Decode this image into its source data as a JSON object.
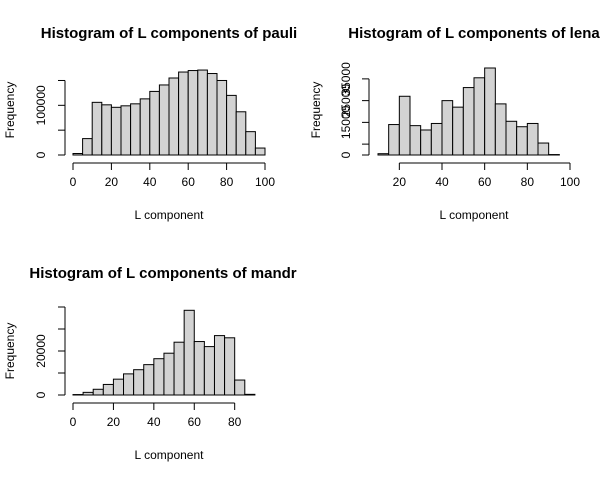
{
  "chart_data": [
    {
      "type": "bar",
      "title": "Histogram of L components of pauli",
      "xlabel": "L component",
      "ylabel": "Frequency",
      "xlim": [
        0,
        100
      ],
      "ylim": [
        0,
        155000
      ],
      "xticks": [
        0,
        20,
        40,
        60,
        80,
        100
      ],
      "yticks": [
        0,
        50000,
        100000,
        150000
      ],
      "ytick_labels": [
        "0",
        "",
        "100000",
        ""
      ],
      "bin_edges": [
        0,
        5,
        10,
        15,
        20,
        25,
        30,
        35,
        40,
        45,
        50,
        55,
        60,
        65,
        70,
        75,
        80,
        85,
        90,
        95,
        100
      ],
      "values": [
        3000,
        33000,
        106000,
        101000,
        96000,
        99000,
        103000,
        113000,
        128000,
        141000,
        155000,
        167000,
        170000,
        171000,
        164000,
        150000,
        120000,
        87000,
        47000,
        14000
      ]
    },
    {
      "type": "bar",
      "title": "Histogram of L components of lena",
      "xlabel": "L component",
      "ylabel": "Frequency",
      "xlim": [
        10,
        100
      ],
      "ylim": [
        0,
        40000
      ],
      "xticks": [
        20,
        40,
        60,
        80,
        100
      ],
      "yticks": [
        0,
        5000,
        15000,
        25000,
        35000
      ],
      "ytick_labels": [
        "0",
        "",
        "15000",
        "25000",
        "35000"
      ],
      "bin_edges": [
        10,
        15,
        20,
        25,
        30,
        35,
        40,
        45,
        50,
        55,
        60,
        65,
        70,
        75,
        80,
        85,
        90,
        95
      ],
      "values": [
        600,
        14000,
        27000,
        13500,
        11500,
        14500,
        25000,
        22000,
        31000,
        35500,
        40000,
        23500,
        15500,
        13000,
        14500,
        5500,
        200
      ]
    },
    {
      "type": "bar",
      "title": "Histogram of L components of mandr",
      "xlabel": "L component",
      "ylabel": "Frequency",
      "xlim": [
        0,
        95
      ],
      "ylim": [
        0,
        40000
      ],
      "xticks": [
        0,
        20,
        40,
        60,
        80
      ],
      "yticks": [
        0,
        10000,
        20000,
        30000,
        40000
      ],
      "ytick_labels": [
        "0",
        "",
        "20000",
        "",
        ""
      ],
      "bin_edges": [
        0,
        5,
        10,
        15,
        20,
        25,
        30,
        35,
        40,
        45,
        50,
        55,
        60,
        65,
        70,
        75,
        80,
        85,
        90
      ],
      "values": [
        200,
        1200,
        2600,
        4800,
        7200,
        9600,
        11500,
        13800,
        16500,
        19000,
        24000,
        38500,
        24300,
        22000,
        27000,
        26000,
        6800,
        300
      ]
    }
  ]
}
